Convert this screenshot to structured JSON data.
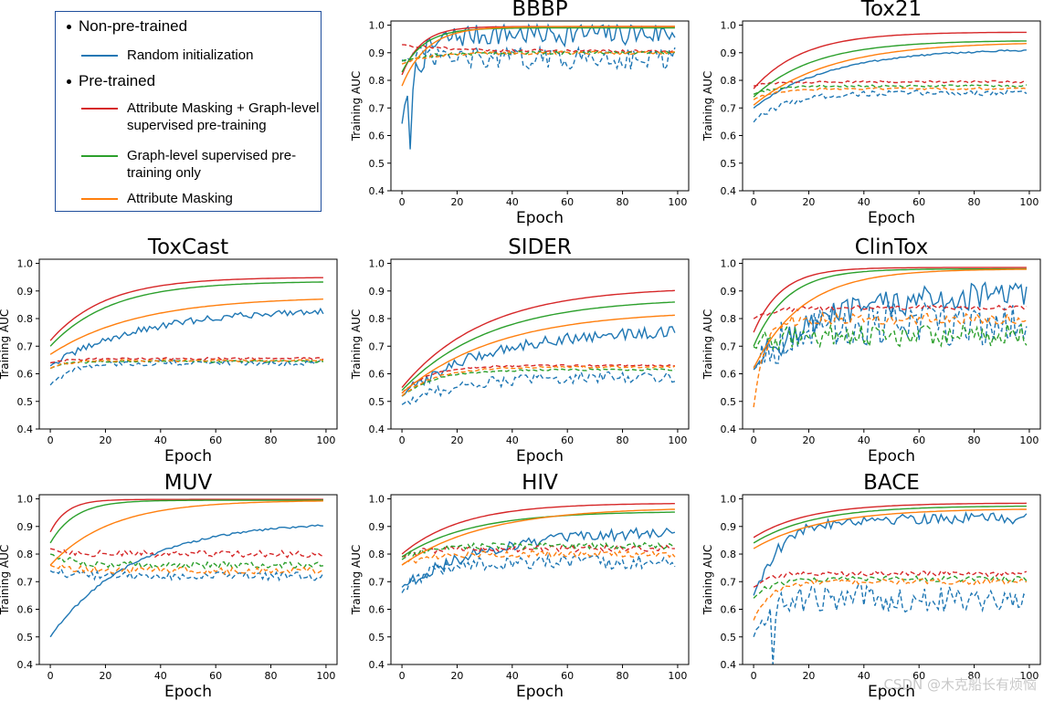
{
  "legend": {
    "group_non_pretrained": "Non-pre-trained",
    "group_pretrained": "Pre-trained",
    "entries": [
      {
        "label": "Random initialization",
        "color": "#1f77b4"
      },
      {
        "label": "Attribute Masking + Graph-level supervised pre-training",
        "color": "#d62728"
      },
      {
        "label": "Graph-level supervised pre-training only",
        "color": "#2ca02c"
      },
      {
        "label": "Attribute Masking",
        "color": "#ff7f0e"
      }
    ]
  },
  "watermark": "CSDN @木克船长有烦恼",
  "chart_data": [
    {
      "type": "line",
      "title": "BBBP",
      "xlabel": "Epoch",
      "ylabel": "Training AUC",
      "xlim": [
        0,
        100
      ],
      "ylim": [
        0.4,
        1.0
      ],
      "xticks": [
        "0",
        "20",
        "40",
        "60",
        "80",
        "100"
      ],
      "yticks": [
        "0.4",
        "0.5",
        "0.6",
        "0.7",
        "0.8",
        "0.9",
        "1.0"
      ],
      "series": [
        {
          "name": "Random initialization (train)",
          "color": "#1f77b4",
          "dashed": false,
          "start": 0.65,
          "end": 0.97,
          "rate": 6,
          "noise": 0.045,
          "drop": [
            3,
            0.55
          ]
        },
        {
          "name": "Random initialization (validation)",
          "color": "#1f77b4",
          "dashed": true,
          "start": 0.88,
          "end": 0.88,
          "rate": 5,
          "noise": 0.04
        },
        {
          "name": "Attribute Masking + Graph-level (train)",
          "color": "#d62728",
          "dashed": false,
          "start": 0.82,
          "end": 0.995,
          "rate": 7,
          "noise": 0
        },
        {
          "name": "Attribute Masking + Graph-level (validation)",
          "color": "#d62728",
          "dashed": true,
          "start": 0.93,
          "end": 0.905,
          "rate": 20,
          "noise": 0.005
        },
        {
          "name": "Graph-level only (train)",
          "color": "#2ca02c",
          "dashed": false,
          "start": 0.83,
          "end": 0.99,
          "rate": 8,
          "noise": 0
        },
        {
          "name": "Graph-level only (validation)",
          "color": "#2ca02c",
          "dashed": true,
          "start": 0.87,
          "end": 0.9,
          "rate": 10,
          "noise": 0.006
        },
        {
          "name": "Attribute Masking (train)",
          "color": "#ff7f0e",
          "dashed": false,
          "start": 0.78,
          "end": 0.995,
          "rate": 9,
          "noise": 0
        },
        {
          "name": "Attribute Masking (validation)",
          "color": "#ff7f0e",
          "dashed": true,
          "start": 0.86,
          "end": 0.9,
          "rate": 10,
          "noise": 0.006
        }
      ]
    },
    {
      "type": "line",
      "title": "Tox21",
      "xlabel": "Epoch",
      "ylabel": "Training AUC",
      "xlim": [
        0,
        100
      ],
      "ylim": [
        0.4,
        1.0
      ],
      "xticks": [
        "0",
        "20",
        "40",
        "60",
        "80",
        "100"
      ],
      "yticks": [
        "0.4",
        "0.5",
        "0.6",
        "0.7",
        "0.8",
        "0.9",
        "1.0"
      ],
      "series": [
        {
          "name": "Random initialization (train)",
          "color": "#1f77b4",
          "dashed": false,
          "start": 0.7,
          "end": 0.915,
          "rate": 28,
          "noise": 0.003
        },
        {
          "name": "Random initialization (validation)",
          "color": "#1f77b4",
          "dashed": true,
          "start": 0.65,
          "end": 0.755,
          "rate": 12,
          "noise": 0.01
        },
        {
          "name": "Attribute Masking + Graph-level (train)",
          "color": "#d62728",
          "dashed": false,
          "start": 0.77,
          "end": 0.975,
          "rate": 18,
          "noise": 0
        },
        {
          "name": "Attribute Masking + Graph-level (validation)",
          "color": "#d62728",
          "dashed": true,
          "start": 0.78,
          "end": 0.795,
          "rate": 8,
          "noise": 0.004
        },
        {
          "name": "Graph-level only (train)",
          "color": "#2ca02c",
          "dashed": false,
          "start": 0.74,
          "end": 0.945,
          "rate": 22,
          "noise": 0
        },
        {
          "name": "Graph-level only (validation)",
          "color": "#2ca02c",
          "dashed": true,
          "start": 0.75,
          "end": 0.78,
          "rate": 8,
          "noise": 0.004
        },
        {
          "name": "Attribute Masking (train)",
          "color": "#ff7f0e",
          "dashed": false,
          "start": 0.71,
          "end": 0.94,
          "rate": 28,
          "noise": 0
        },
        {
          "name": "Attribute Masking (validation)",
          "color": "#ff7f0e",
          "dashed": true,
          "start": 0.73,
          "end": 0.77,
          "rate": 8,
          "noise": 0.004
        }
      ]
    },
    {
      "type": "line",
      "title": "ToxCast",
      "xlabel": "Epoch",
      "ylabel": "Training AUC",
      "xlim": [
        0,
        100
      ],
      "ylim": [
        0.4,
        1.0
      ],
      "xticks": [
        "0",
        "20",
        "40",
        "60",
        "80",
        "100"
      ],
      "yticks": [
        "0.4",
        "0.5",
        "0.6",
        "0.7",
        "0.8",
        "0.9",
        "1.0"
      ],
      "series": [
        {
          "name": "Random initialization (train)",
          "color": "#1f77b4",
          "dashed": false,
          "start": 0.63,
          "end": 0.84,
          "rate": 35,
          "noise": 0.012
        },
        {
          "name": "Random initialization (validation)",
          "color": "#1f77b4",
          "dashed": true,
          "start": 0.56,
          "end": 0.64,
          "rate": 8,
          "noise": 0.01
        },
        {
          "name": "Attribute Masking + Graph-level (train)",
          "color": "#d62728",
          "dashed": false,
          "start": 0.72,
          "end": 0.95,
          "rate": 20,
          "noise": 0
        },
        {
          "name": "Attribute Masking + Graph-level (validation)",
          "color": "#d62728",
          "dashed": true,
          "start": 0.64,
          "end": 0.655,
          "rate": 6,
          "noise": 0.004
        },
        {
          "name": "Graph-level only (train)",
          "color": "#2ca02c",
          "dashed": false,
          "start": 0.7,
          "end": 0.935,
          "rate": 22,
          "noise": 0
        },
        {
          "name": "Graph-level only (validation)",
          "color": "#2ca02c",
          "dashed": true,
          "start": 0.62,
          "end": 0.645,
          "rate": 6,
          "noise": 0.004
        },
        {
          "name": "Attribute Masking (train)",
          "color": "#ff7f0e",
          "dashed": false,
          "start": 0.67,
          "end": 0.88,
          "rate": 32,
          "noise": 0
        },
        {
          "name": "Attribute Masking (validation)",
          "color": "#ff7f0e",
          "dashed": true,
          "start": 0.62,
          "end": 0.648,
          "rate": 6,
          "noise": 0.004
        }
      ]
    },
    {
      "type": "line",
      "title": "SIDER",
      "xlabel": "Epoch",
      "ylabel": "Training AUC",
      "xlim": [
        0,
        100
      ],
      "ylim": [
        0.4,
        1.0
      ],
      "xticks": [
        "0",
        "20",
        "40",
        "60",
        "80",
        "100"
      ],
      "yticks": [
        "0.4",
        "0.5",
        "0.6",
        "0.7",
        "0.8",
        "0.9",
        "1.0"
      ],
      "series": [
        {
          "name": "Random initialization (train)",
          "color": "#1f77b4",
          "dashed": false,
          "start": 0.52,
          "end": 0.76,
          "rate": 30,
          "noise": 0.02
        },
        {
          "name": "Random initialization (validation)",
          "color": "#1f77b4",
          "dashed": true,
          "start": 0.49,
          "end": 0.59,
          "rate": 20,
          "noise": 0.02
        },
        {
          "name": "Attribute Masking + Graph-level (train)",
          "color": "#d62728",
          "dashed": false,
          "start": 0.55,
          "end": 0.915,
          "rate": 30,
          "noise": 0
        },
        {
          "name": "Attribute Masking + Graph-level (validation)",
          "color": "#d62728",
          "dashed": true,
          "start": 0.53,
          "end": 0.63,
          "rate": 10,
          "noise": 0.003
        },
        {
          "name": "Graph-level only (train)",
          "color": "#2ca02c",
          "dashed": false,
          "start": 0.54,
          "end": 0.875,
          "rate": 32,
          "noise": 0
        },
        {
          "name": "Graph-level only (validation)",
          "color": "#2ca02c",
          "dashed": true,
          "start": 0.52,
          "end": 0.615,
          "rate": 12,
          "noise": 0.003
        },
        {
          "name": "Attribute Masking (train)",
          "color": "#ff7f0e",
          "dashed": false,
          "start": 0.53,
          "end": 0.83,
          "rate": 35,
          "noise": 0
        },
        {
          "name": "Attribute Masking (validation)",
          "color": "#ff7f0e",
          "dashed": true,
          "start": 0.52,
          "end": 0.625,
          "rate": 12,
          "noise": 0.003
        }
      ]
    },
    {
      "type": "line",
      "title": "ClinTox",
      "xlabel": "Epoch",
      "ylabel": "Training AUC",
      "xlim": [
        0,
        100
      ],
      "ylim": [
        0.4,
        1.0
      ],
      "xticks": [
        "0",
        "20",
        "40",
        "60",
        "80",
        "100"
      ],
      "yticks": [
        "0.4",
        "0.5",
        "0.6",
        "0.7",
        "0.8",
        "0.9",
        "1.0"
      ],
      "series": [
        {
          "name": "Random initialization (train)",
          "color": "#1f77b4",
          "dashed": false,
          "start": 0.63,
          "end": 0.89,
          "rate": 25,
          "noise": 0.05
        },
        {
          "name": "Random initialization (validation)",
          "color": "#1f77b4",
          "dashed": true,
          "start": 0.62,
          "end": 0.78,
          "rate": 10,
          "noise": 0.08
        },
        {
          "name": "Attribute Masking + Graph-level (train)",
          "color": "#d62728",
          "dashed": false,
          "start": 0.75,
          "end": 0.985,
          "rate": 10,
          "noise": 0
        },
        {
          "name": "Attribute Masking + Graph-level (validation)",
          "color": "#d62728",
          "dashed": true,
          "start": 0.8,
          "end": 0.84,
          "rate": 8,
          "noise": 0.008
        },
        {
          "name": "Graph-level only (train)",
          "color": "#2ca02c",
          "dashed": false,
          "start": 0.7,
          "end": 0.98,
          "rate": 12,
          "noise": 0
        },
        {
          "name": "Graph-level only (validation)",
          "color": "#2ca02c",
          "dashed": true,
          "start": 0.7,
          "end": 0.74,
          "rate": 8,
          "noise": 0.04
        },
        {
          "name": "Attribute Masking (train)",
          "color": "#ff7f0e",
          "dashed": false,
          "start": 0.62,
          "end": 0.98,
          "rate": 18,
          "noise": 0
        },
        {
          "name": "Attribute Masking (validation)",
          "color": "#ff7f0e",
          "dashed": true,
          "start": 0.48,
          "end": 0.8,
          "rate": 4,
          "noise": 0.02
        }
      ]
    },
    {
      "type": "line",
      "title": "MUV",
      "xlabel": "Epoch",
      "ylabel": "Training AUC",
      "xlim": [
        0,
        100
      ],
      "ylim": [
        0.4,
        1.0
      ],
      "xticks": [
        "0",
        "20",
        "40",
        "60",
        "80",
        "100"
      ],
      "yticks": [
        "0.4",
        "0.5",
        "0.6",
        "0.7",
        "0.8",
        "0.9",
        "1.0"
      ],
      "series": [
        {
          "name": "Random initialization (train)",
          "color": "#1f77b4",
          "dashed": false,
          "start": 0.5,
          "end": 0.92,
          "rate": 30,
          "noise": 0.004
        },
        {
          "name": "Random initialization (validation)",
          "color": "#1f77b4",
          "dashed": true,
          "start": 0.74,
          "end": 0.72,
          "rate": 8,
          "noise": 0.015
        },
        {
          "name": "Attribute Masking + Graph-level (train)",
          "color": "#d62728",
          "dashed": false,
          "start": 0.88,
          "end": 0.998,
          "rate": 6,
          "noise": 0
        },
        {
          "name": "Attribute Masking + Graph-level (validation)",
          "color": "#d62728",
          "dashed": true,
          "start": 0.82,
          "end": 0.8,
          "rate": 8,
          "noise": 0.012
        },
        {
          "name": "Graph-level only (train)",
          "color": "#2ca02c",
          "dashed": false,
          "start": 0.84,
          "end": 0.995,
          "rate": 9,
          "noise": 0
        },
        {
          "name": "Graph-level only (validation)",
          "color": "#2ca02c",
          "dashed": true,
          "start": 0.8,
          "end": 0.76,
          "rate": 8,
          "noise": 0.012
        },
        {
          "name": "Attribute Masking (train)",
          "color": "#ff7f0e",
          "dashed": false,
          "start": 0.76,
          "end": 0.995,
          "rate": 22,
          "noise": 0
        },
        {
          "name": "Attribute Masking (validation)",
          "color": "#ff7f0e",
          "dashed": true,
          "start": 0.76,
          "end": 0.74,
          "rate": 8,
          "noise": 0.012
        }
      ]
    },
    {
      "type": "line",
      "title": "HIV",
      "xlabel": "Epoch",
      "ylabel": "Training AUC",
      "xlim": [
        0,
        100
      ],
      "ylim": [
        0.4,
        1.0
      ],
      "xticks": [
        "0",
        "20",
        "40",
        "60",
        "80",
        "100"
      ],
      "yticks": [
        "0.4",
        "0.5",
        "0.6",
        "0.7",
        "0.8",
        "0.9",
        "1.0"
      ],
      "series": [
        {
          "name": "Random initialization (train)",
          "color": "#1f77b4",
          "dashed": false,
          "start": 0.68,
          "end": 0.885,
          "rate": 30,
          "noise": 0.02
        },
        {
          "name": "Random initialization (validation)",
          "color": "#1f77b4",
          "dashed": true,
          "start": 0.66,
          "end": 0.77,
          "rate": 10,
          "noise": 0.025
        },
        {
          "name": "Attribute Masking + Graph-level (train)",
          "color": "#d62728",
          "dashed": false,
          "start": 0.8,
          "end": 0.985,
          "rate": 22,
          "noise": 0
        },
        {
          "name": "Attribute Masking + Graph-level (validation)",
          "color": "#d62728",
          "dashed": true,
          "start": 0.79,
          "end": 0.82,
          "rate": 8,
          "noise": 0.012
        },
        {
          "name": "Graph-level only (train)",
          "color": "#2ca02c",
          "dashed": false,
          "start": 0.79,
          "end": 0.955,
          "rate": 25,
          "noise": 0
        },
        {
          "name": "Graph-level only (validation)",
          "color": "#2ca02c",
          "dashed": true,
          "start": 0.78,
          "end": 0.83,
          "rate": 8,
          "noise": 0.012
        },
        {
          "name": "Attribute Masking (train)",
          "color": "#ff7f0e",
          "dashed": false,
          "start": 0.76,
          "end": 0.97,
          "rate": 30,
          "noise": 0
        },
        {
          "name": "Attribute Masking (validation)",
          "color": "#ff7f0e",
          "dashed": true,
          "start": 0.76,
          "end": 0.8,
          "rate": 8,
          "noise": 0.012
        }
      ]
    },
    {
      "type": "line",
      "title": "BACE",
      "xlabel": "Epoch",
      "ylabel": "Training AUC",
      "xlim": [
        0,
        100
      ],
      "ylim": [
        0.4,
        1.0
      ],
      "xticks": [
        "0",
        "20",
        "40",
        "60",
        "80",
        "100"
      ],
      "yticks": [
        "0.4",
        "0.5",
        "0.6",
        "0.7",
        "0.8",
        "0.9",
        "1.0"
      ],
      "series": [
        {
          "name": "Random initialization (train)",
          "color": "#1f77b4",
          "dashed": false,
          "start": 0.65,
          "end": 0.93,
          "rate": 10,
          "noise": 0.02
        },
        {
          "name": "Random initialization (validation)",
          "color": "#1f77b4",
          "dashed": true,
          "start": 0.5,
          "end": 0.64,
          "rate": 6,
          "noise": 0.05,
          "drop": [
            7,
            0.4
          ]
        },
        {
          "name": "Attribute Masking + Graph-level (train)",
          "color": "#d62728",
          "dashed": false,
          "start": 0.86,
          "end": 0.985,
          "rate": 20,
          "noise": 0
        },
        {
          "name": "Attribute Masking + Graph-level (validation)",
          "color": "#d62728",
          "dashed": true,
          "start": 0.68,
          "end": 0.73,
          "rate": 6,
          "noise": 0.01
        },
        {
          "name": "Graph-level only (train)",
          "color": "#2ca02c",
          "dashed": false,
          "start": 0.84,
          "end": 0.975,
          "rate": 22,
          "noise": 0
        },
        {
          "name": "Graph-level only (validation)",
          "color": "#2ca02c",
          "dashed": true,
          "start": 0.64,
          "end": 0.71,
          "rate": 6,
          "noise": 0.01
        },
        {
          "name": "Attribute Masking (train)",
          "color": "#ff7f0e",
          "dashed": false,
          "start": 0.82,
          "end": 0.965,
          "rate": 25,
          "noise": 0
        },
        {
          "name": "Attribute Masking (validation)",
          "color": "#ff7f0e",
          "dashed": true,
          "start": 0.56,
          "end": 0.7,
          "rate": 6,
          "noise": 0.01
        }
      ]
    }
  ]
}
